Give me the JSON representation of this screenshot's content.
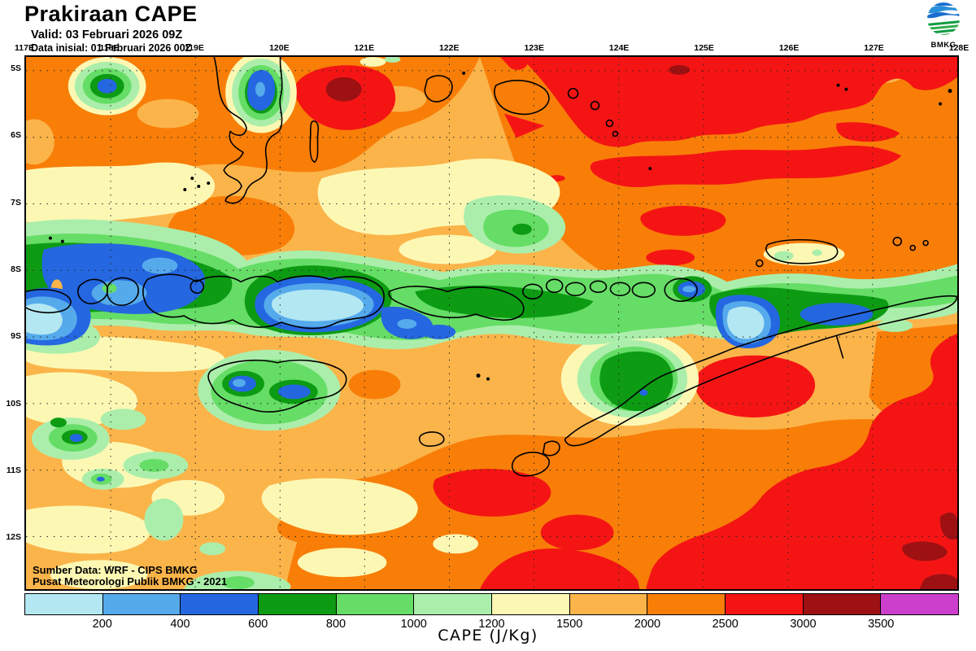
{
  "header": {
    "title": "Prakiraan CAPE",
    "valid_line": "Valid: 03 Februari 2026 09Z",
    "init_line": "Data inisial: 01 Februari 2026 00Z"
  },
  "logo": {
    "label": "BMKG"
  },
  "map": {
    "lon_labels": [
      "117E",
      "118E",
      "119E",
      "120E",
      "121E",
      "122E",
      "123E",
      "124E",
      "125E",
      "126E",
      "127E",
      "128E"
    ],
    "lat_labels": [
      "5S",
      "6S",
      "7S",
      "8S",
      "9S",
      "10S",
      "11S",
      "12S"
    ],
    "source_line1": "Sumber Data: WRF - CIPS BMKG",
    "source_line2": "Pusat Meteorologi Publik BMKG - 2021"
  },
  "colorbar": {
    "title": "CAPE (J/Kg)",
    "tick_labels": [
      "200",
      "400",
      "600",
      "800",
      "1000",
      "1200",
      "1500",
      "2000",
      "2500",
      "3000",
      "3500"
    ],
    "colors": [
      "#b3e7f2",
      "#55aaec",
      "#2467e0",
      "#0d9b13",
      "#66dd66",
      "#abeeab",
      "#fcf8b4",
      "#fbb44a",
      "#f87e08",
      "#f51414",
      "#9d1113",
      "#cc3ecc"
    ]
  },
  "chart_data": {
    "type": "heatmap",
    "title": "Prakiraan CAPE",
    "units": "J/Kg",
    "x_axis_ticks": [
      "117E",
      "118E",
      "119E",
      "120E",
      "121E",
      "122E",
      "123E",
      "124E",
      "125E",
      "126E",
      "127E",
      "128E"
    ],
    "y_axis_ticks": [
      "5S",
      "6S",
      "7S",
      "8S",
      "9S",
      "10S",
      "11S",
      "12S"
    ],
    "scale_bin_edges": [
      200,
      400,
      600,
      800,
      1000,
      1200,
      1500,
      2000,
      2500,
      3000,
      3500
    ],
    "scale_colors": [
      "#b3e7f2",
      "#55aaec",
      "#2467e0",
      "#0d9b13",
      "#66dd66",
      "#abeeab",
      "#fcf8b4",
      "#fbb44a",
      "#f87e08",
      "#f51414",
      "#9d1113",
      "#cc3ecc"
    ],
    "legend_position": "bottom",
    "grid": "dotted 1-degree graticule",
    "readable_features": [
      {
        "area": "island chain band ~8S-9.5S (Lombok, Sumbawa, Flores, Alor, Timor)",
        "cape_range": "200-800 J/Kg (blue/cyan cores under 400)"
      },
      {
        "area": "north and northeast ocean (5S-7S, 122E-128E)",
        "cape_range": "2000-3000 J/Kg (orange/red)"
      },
      {
        "area": "southeast ocean (10S-12.5S, 124E-128E)",
        "cape_range": "2500-3500+ J/Kg (red with dark-red pockets)"
      },
      {
        "area": "central/south seas background",
        "cape_range": "1200-2000 J/Kg (cream/amber)"
      }
    ]
  }
}
